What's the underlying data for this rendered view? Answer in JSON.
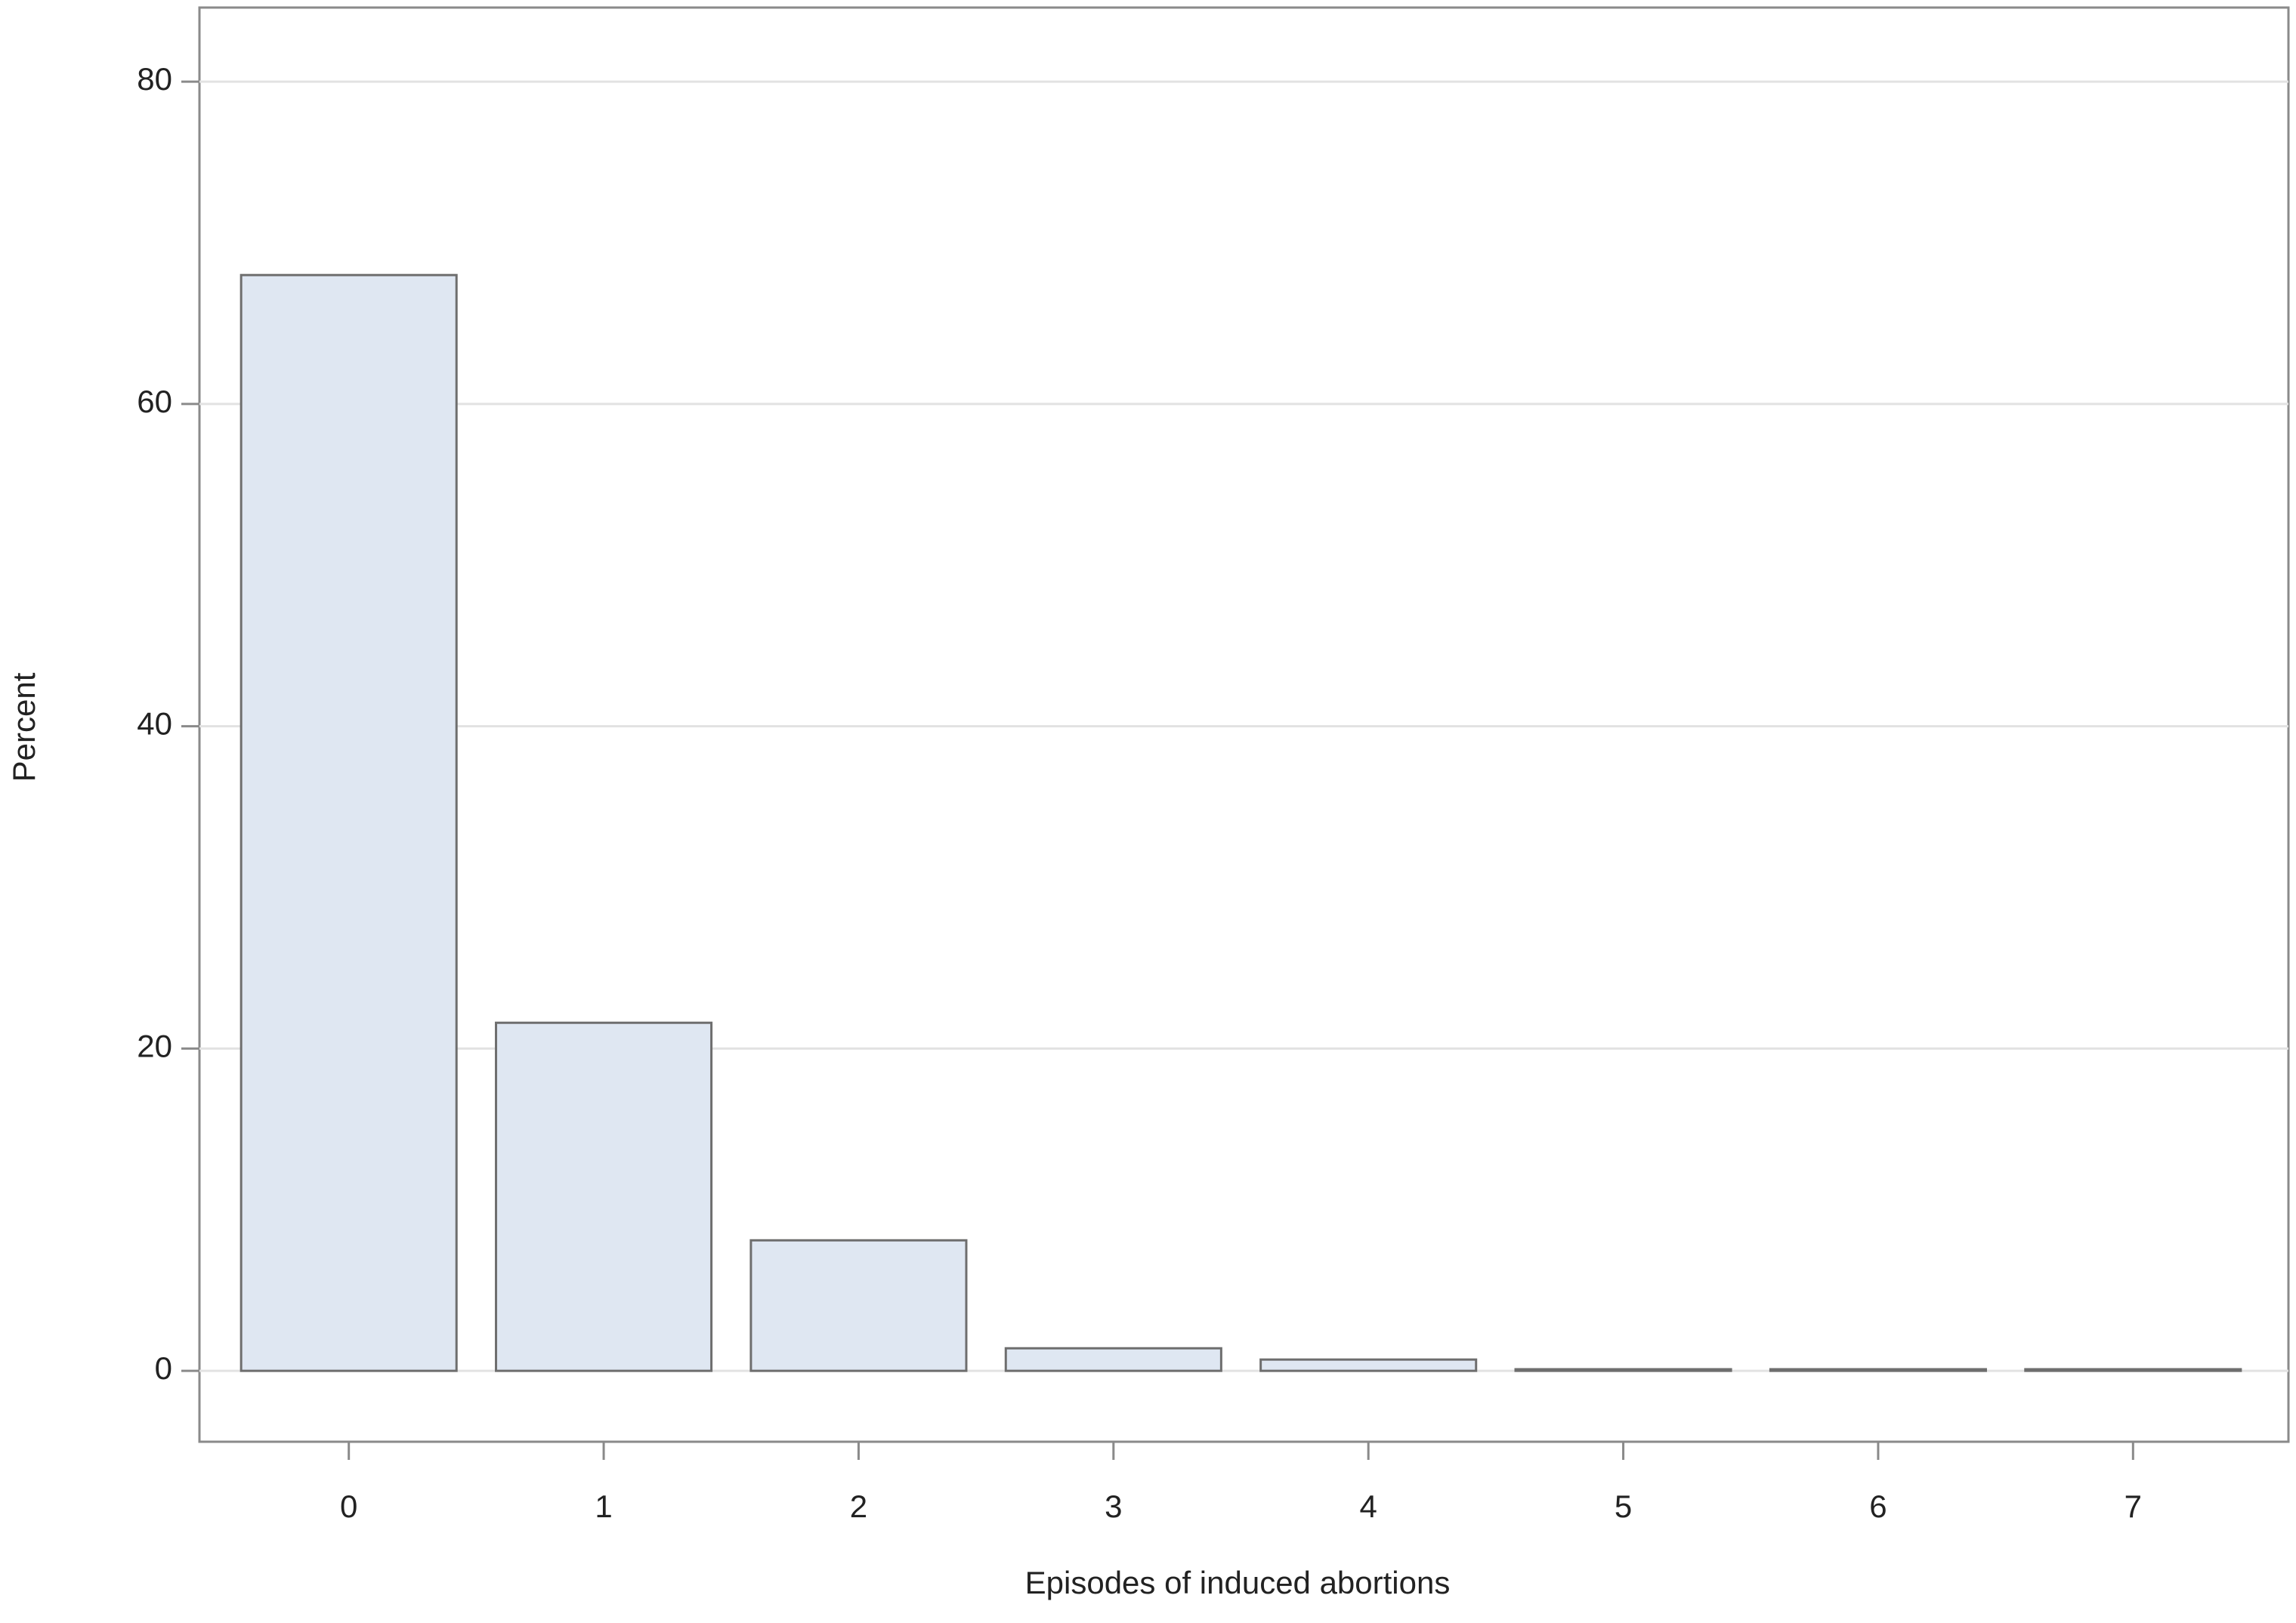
{
  "chart_data": {
    "type": "bar",
    "x_label": "Episodes of induced abortions",
    "y_label": "Percent",
    "categories": [
      "0",
      "1",
      "2",
      "3",
      "4",
      "5",
      "6",
      "7"
    ],
    "values": [
      68,
      21.6,
      8.1,
      1.4,
      0.7,
      0.1,
      0.1,
      0.1
    ],
    "color": "#dfe7f2",
    "ylim": [
      -4.4,
      84.6
    ],
    "yticks": [
      0,
      20,
      40,
      60,
      80
    ],
    "grid": true
  }
}
